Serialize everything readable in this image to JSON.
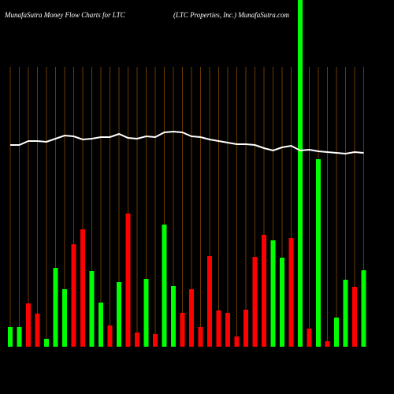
{
  "chart_data": {
    "type": "bar",
    "title": "MunafaSutra  Money Flow  Charts for LTC",
    "subtitle": "(LTC Properties,  Inc.) MunafaSutra.com",
    "ylim": [
      0,
      440
    ],
    "values": [
      25,
      25,
      55,
      42,
      10,
      100,
      73,
      130,
      149,
      96,
      56,
      27,
      82,
      169,
      18,
      86,
      16,
      155,
      77,
      43,
      73,
      25,
      115,
      46,
      43,
      13,
      47,
      114,
      142,
      135,
      113,
      138,
      440,
      23,
      238,
      7,
      37,
      85,
      76,
      97
    ],
    "colors": [
      "#00ff00",
      "#00ff00",
      "#ff0000",
      "#ff0000",
      "#00ff00",
      "#00ff00",
      "#00ff00",
      "#ff0000",
      "#ff0000",
      "#00ff00",
      "#00ff00",
      "#ff0000",
      "#00ff00",
      "#ff0000",
      "#ff0000",
      "#00ff00",
      "#ff0000",
      "#00ff00",
      "#00ff00",
      "#ff0000",
      "#ff0000",
      "#ff0000",
      "#ff0000",
      "#ff0000",
      "#ff0000",
      "#ff0000",
      "#ff0000",
      "#ff0000",
      "#ff0000",
      "#00ff00",
      "#00ff00",
      "#ff0000",
      "#00ff00",
      "#ff0000",
      "#00ff00",
      "#ff0000",
      "#00ff00",
      "#00ff00",
      "#ff0000",
      "#00ff00"
    ],
    "line": [
      256,
      256,
      261,
      261,
      260,
      264,
      268,
      267,
      263,
      264,
      266,
      266,
      270,
      265,
      264,
      267,
      266,
      272,
      273,
      272,
      267,
      266,
      263,
      261,
      259,
      257,
      257,
      256,
      252,
      249,
      253,
      255,
      249,
      250,
      248,
      247,
      246,
      245,
      247,
      246
    ],
    "line_color": "#ffffff"
  }
}
